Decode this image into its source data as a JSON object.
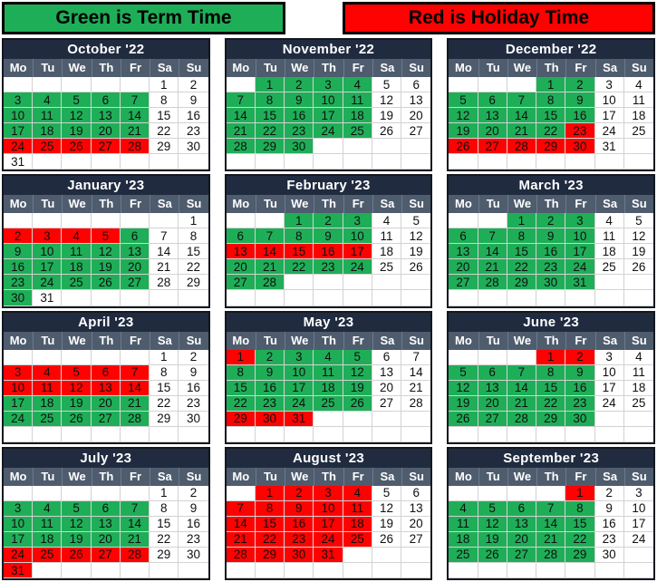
{
  "legend": {
    "term": {
      "label": "Green is Term Time",
      "color": "#1FAE58"
    },
    "holiday": {
      "label": "Red is Holiday Time",
      "color": "#FE0202"
    }
  },
  "colors": {
    "term_green": "#1FAE58",
    "holiday_red": "#FE0202",
    "title_navy": "#202B40",
    "header_slate": "#4E5C6E",
    "cell_border": "#D2D2D2",
    "table_border": "#14181F"
  },
  "day_headers": [
    "Mo",
    "Tu",
    "We",
    "Th",
    "Fr",
    "Sa",
    "Su"
  ],
  "cell_color_codes": {
    "g": "term-green",
    "r": "holiday-red",
    "w": "plain-white",
    "e": "empty"
  },
  "months": [
    {
      "name": "October '22",
      "weeks": [
        [
          "",
          "",
          "",
          "",
          "",
          "1w",
          "2w"
        ],
        [
          "3g",
          "4g",
          "5g",
          "6g",
          "7g",
          "8w",
          "9w"
        ],
        [
          "10g",
          "11g",
          "12g",
          "13g",
          "14g",
          "15w",
          "16w"
        ],
        [
          "17g",
          "18g",
          "19g",
          "20g",
          "21g",
          "22w",
          "23w"
        ],
        [
          "24r",
          "25r",
          "26r",
          "27r",
          "28r",
          "29w",
          "30w"
        ],
        [
          "31w",
          "",
          "",
          "",
          "",
          "",
          ""
        ]
      ]
    },
    {
      "name": "November '22",
      "weeks": [
        [
          "",
          "1g",
          "2g",
          "3g",
          "4g",
          "5w",
          "6w"
        ],
        [
          "7g",
          "8g",
          "9g",
          "10g",
          "11g",
          "12w",
          "13w"
        ],
        [
          "14g",
          "15g",
          "16g",
          "17g",
          "18g",
          "19w",
          "20w"
        ],
        [
          "21g",
          "22g",
          "23g",
          "24g",
          "25g",
          "26w",
          "27w"
        ],
        [
          "28g",
          "29g",
          "30g",
          "",
          "",
          "",
          ""
        ],
        [
          "",
          "",
          "",
          "",
          "",
          "",
          ""
        ]
      ]
    },
    {
      "name": "December '22",
      "weeks": [
        [
          "",
          "",
          "",
          "1g",
          "2g",
          "3w",
          "4w"
        ],
        [
          "5g",
          "6g",
          "7g",
          "8g",
          "9g",
          "10w",
          "11w"
        ],
        [
          "12g",
          "13g",
          "14g",
          "15g",
          "16g",
          "17w",
          "18w"
        ],
        [
          "19g",
          "20g",
          "21g",
          "22g",
          "23r",
          "24w",
          "25w"
        ],
        [
          "26r",
          "27r",
          "28r",
          "29r",
          "30r",
          "31w",
          ""
        ],
        [
          "",
          "",
          "",
          "",
          "",
          "",
          ""
        ]
      ]
    },
    {
      "name": "January '23",
      "weeks": [
        [
          "",
          "",
          "",
          "",
          "",
          "",
          "1w"
        ],
        [
          "2r",
          "3r",
          "4r",
          "5r",
          "6g",
          "7w",
          "8w"
        ],
        [
          "9g",
          "10g",
          "11g",
          "12g",
          "13g",
          "14w",
          "15w"
        ],
        [
          "16g",
          "17g",
          "18g",
          "19g",
          "20g",
          "21w",
          "22w"
        ],
        [
          "23g",
          "24g",
          "25g",
          "26g",
          "27g",
          "28w",
          "29w"
        ],
        [
          "30g",
          "31w",
          "",
          "",
          "",
          "",
          ""
        ]
      ]
    },
    {
      "name": "February '23",
      "weeks": [
        [
          "",
          "",
          "1g",
          "2g",
          "3g",
          "4w",
          "5w"
        ],
        [
          "6g",
          "7g",
          "8g",
          "9g",
          "10g",
          "11w",
          "12w"
        ],
        [
          "13r",
          "14r",
          "15r",
          "16r",
          "17r",
          "18w",
          "19w"
        ],
        [
          "20g",
          "21g",
          "22g",
          "23g",
          "24g",
          "25w",
          "26w"
        ],
        [
          "27g",
          "28g",
          "",
          "",
          "",
          "",
          ""
        ],
        [
          "",
          "",
          "",
          "",
          "",
          "",
          ""
        ]
      ]
    },
    {
      "name": "March '23",
      "weeks": [
        [
          "",
          "",
          "1g",
          "2g",
          "3g",
          "4w",
          "5w"
        ],
        [
          "6g",
          "7g",
          "8g",
          "9g",
          "10g",
          "11w",
          "12w"
        ],
        [
          "13g",
          "14g",
          "15g",
          "16g",
          "17g",
          "18w",
          "19w"
        ],
        [
          "20g",
          "21g",
          "22g",
          "23g",
          "24g",
          "25w",
          "26w"
        ],
        [
          "27g",
          "28g",
          "29g",
          "30g",
          "31g",
          "",
          ""
        ],
        [
          "",
          "",
          "",
          "",
          "",
          "",
          ""
        ]
      ]
    },
    {
      "name": "April '23",
      "weeks": [
        [
          "",
          "",
          "",
          "",
          "",
          "1w",
          "2w"
        ],
        [
          "3r",
          "4r",
          "5r",
          "6r",
          "7r",
          "8w",
          "9w"
        ],
        [
          "10r",
          "11r",
          "12r",
          "13r",
          "14r",
          "15w",
          "16w"
        ],
        [
          "17g",
          "18g",
          "19g",
          "20g",
          "21g",
          "22w",
          "23w"
        ],
        [
          "24g",
          "25g",
          "26g",
          "27g",
          "28g",
          "29w",
          "30w"
        ],
        [
          "",
          "",
          "",
          "",
          "",
          "",
          ""
        ]
      ]
    },
    {
      "name": "May '23",
      "weeks": [
        [
          "1r",
          "2g",
          "3g",
          "4g",
          "5g",
          "6w",
          "7w"
        ],
        [
          "8g",
          "9g",
          "10g",
          "11g",
          "12g",
          "13w",
          "14w"
        ],
        [
          "15g",
          "16g",
          "17g",
          "18g",
          "19g",
          "20w",
          "21w"
        ],
        [
          "22g",
          "23g",
          "24g",
          "25g",
          "26g",
          "27w",
          "28w"
        ],
        [
          "29r",
          "30r",
          "31r",
          "",
          "",
          "",
          ""
        ],
        [
          "",
          "",
          "",
          "",
          "",
          "",
          ""
        ]
      ]
    },
    {
      "name": "June '23",
      "weeks": [
        [
          "",
          "",
          "",
          "1r",
          "2r",
          "3w",
          "4w"
        ],
        [
          "5g",
          "6g",
          "7g",
          "8g",
          "9g",
          "10w",
          "11w"
        ],
        [
          "12g",
          "13g",
          "14g",
          "15g",
          "16g",
          "17w",
          "18w"
        ],
        [
          "19g",
          "20g",
          "21g",
          "22g",
          "23g",
          "24w",
          "25w"
        ],
        [
          "26g",
          "27g",
          "28g",
          "29g",
          "30g",
          "",
          ""
        ],
        [
          "",
          "",
          "",
          "",
          "",
          "",
          ""
        ]
      ]
    },
    {
      "name": "July '23",
      "weeks": [
        [
          "",
          "",
          "",
          "",
          "",
          "1w",
          "2w"
        ],
        [
          "3g",
          "4g",
          "5g",
          "6g",
          "7g",
          "8w",
          "9w"
        ],
        [
          "10g",
          "11g",
          "12g",
          "13g",
          "14g",
          "15w",
          "16w"
        ],
        [
          "17g",
          "18g",
          "19g",
          "20g",
          "21g",
          "22w",
          "23w"
        ],
        [
          "24r",
          "25r",
          "26r",
          "27r",
          "28r",
          "29w",
          "30w"
        ],
        [
          "31r",
          "",
          "",
          "",
          "",
          "",
          ""
        ]
      ]
    },
    {
      "name": "August '23",
      "weeks": [
        [
          "",
          "1r",
          "2r",
          "3r",
          "4r",
          "5w",
          "6w"
        ],
        [
          "7r",
          "8r",
          "9r",
          "10r",
          "11r",
          "12w",
          "13w"
        ],
        [
          "14r",
          "15r",
          "16r",
          "17r",
          "18r",
          "19w",
          "20w"
        ],
        [
          "21r",
          "22r",
          "23r",
          "24r",
          "25r",
          "26w",
          "27w"
        ],
        [
          "28r",
          "29r",
          "30r",
          "31r",
          "",
          "",
          ""
        ],
        [
          "",
          "",
          "",
          "",
          "",
          "",
          ""
        ]
      ]
    },
    {
      "name": "September '23",
      "weeks": [
        [
          "",
          "",
          "",
          "",
          "1r",
          "2w",
          "3w"
        ],
        [
          "4g",
          "5g",
          "6g",
          "7g",
          "8g",
          "9w",
          "10w"
        ],
        [
          "11g",
          "12g",
          "13g",
          "14g",
          "15g",
          "16w",
          "17w"
        ],
        [
          "18g",
          "19g",
          "20g",
          "21g",
          "22g",
          "23w",
          "24w"
        ],
        [
          "25g",
          "26g",
          "27g",
          "28g",
          "29g",
          "30w",
          ""
        ],
        [
          "",
          "",
          "",
          "",
          "",
          "",
          ""
        ]
      ]
    }
  ]
}
